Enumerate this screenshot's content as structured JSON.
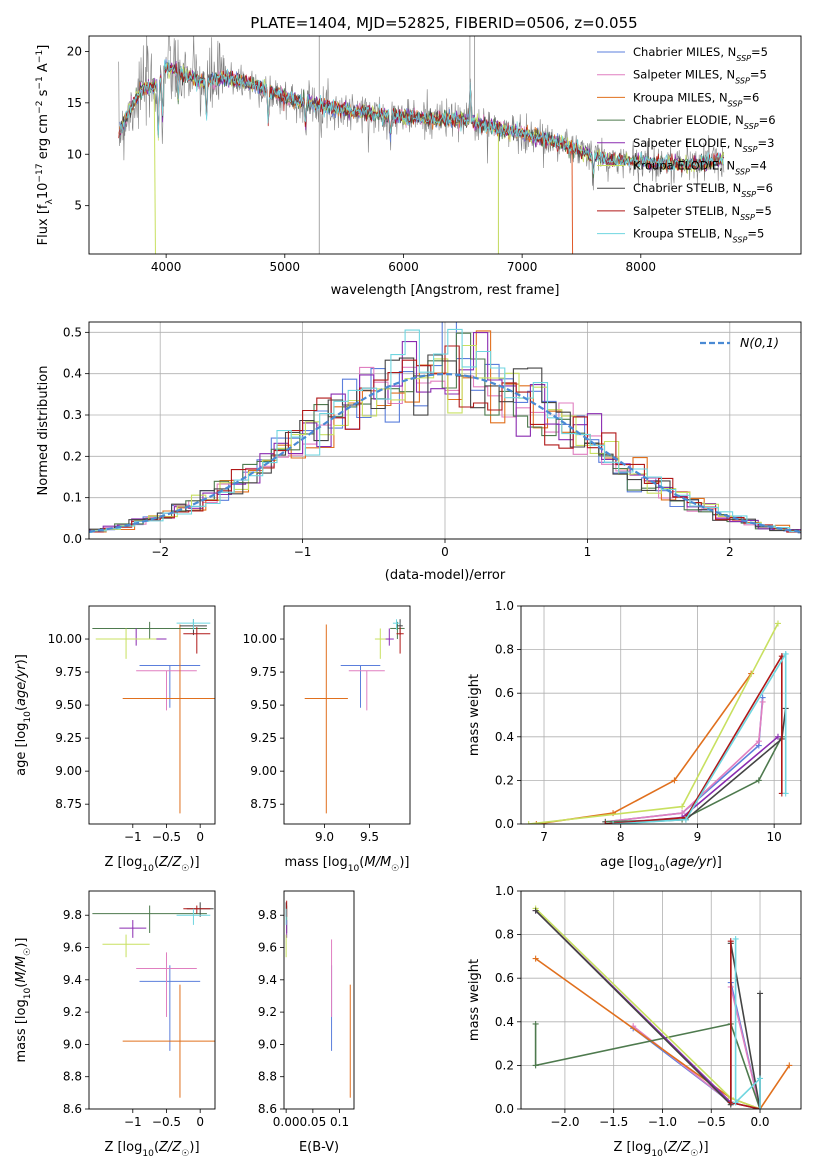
{
  "figure": {
    "title": "PLATE=1404, MJD=52825, FIBERID=0506, z=0.055"
  },
  "colors": {
    "Chabrier MILES": "#5b7fdc",
    "Salpeter MILES": "#e07fc0",
    "Kroupa MILES": "#e0701e",
    "Chabrier ELODIE": "#4e7a4e",
    "Salpeter ELODIE": "#8a2bb0",
    "Kroupa ELODIE": "#c8e060",
    "Chabrier STELIB": "#444444",
    "Salpeter STELIB": "#b01818",
    "Kroupa STELIB": "#6fd6e0",
    "data": "#808080"
  },
  "chart_data": [
    {
      "id": "spectrum",
      "type": "line",
      "title": "PLATE=1404, MJD=52825, FIBERID=0506, z=0.055",
      "xlabel": "wavelength [Angstrom, rest frame]",
      "ylabel": "Flux [f_λ 10^-17 erg cm^-2 s^-1 A^-1]",
      "xlim": [
        3350,
        9350
      ],
      "ylim": [
        0.3,
        21.5
      ],
      "xticks": [
        4000,
        5000,
        6000,
        7000,
        8000
      ],
      "yticks": [
        5,
        10,
        15,
        20
      ],
      "legend": "top-right",
      "legend_entries": [
        {
          "model": "Chabrier MILES",
          "label": "Chabrier MILES, N",
          "sub": "SSP",
          "count": "=5"
        },
        {
          "model": "Salpeter MILES",
          "label": "Salpeter MILES, N",
          "sub": "SSP",
          "count": "=5"
        },
        {
          "model": "Kroupa MILES",
          "label": "Kroupa MILES, N",
          "sub": "SSP",
          "count": "=6"
        },
        {
          "model": "Chabrier ELODIE",
          "label": "Chabrier ELODIE, N",
          "sub": "SSP",
          "count": "=6"
        },
        {
          "model": "Salpeter ELODIE",
          "label": "Salpeter ELODIE, N",
          "sub": "SSP",
          "count": "=3"
        },
        {
          "model": "Kroupa ELODIE",
          "label": "Kroupa ELODIE, N",
          "sub": "SSP",
          "count": "=4"
        },
        {
          "model": "Chabrier STELIB",
          "label": "Chabrier STELIB, N",
          "sub": "SSP",
          "count": "=6"
        },
        {
          "model": "Salpeter STELIB",
          "label": "Salpeter STELIB, N",
          "sub": "SSP",
          "count": "=5"
        },
        {
          "model": "Kroupa STELIB",
          "label": "Kroupa STELIB, N",
          "sub": "SSP",
          "count": "=5"
        }
      ],
      "continuum": [
        [
          3600,
          12.0
        ],
        [
          3700,
          14.5
        ],
        [
          3800,
          16.5
        ],
        [
          3900,
          16.5
        ],
        [
          4000,
          18.5
        ],
        [
          4100,
          18.0
        ],
        [
          4300,
          17.0
        ],
        [
          4500,
          17.5
        ],
        [
          4800,
          16.5
        ],
        [
          5000,
          15.5
        ],
        [
          5200,
          15.0
        ],
        [
          5500,
          14.3
        ],
        [
          6000,
          13.6
        ],
        [
          6500,
          13.3
        ],
        [
          7000,
          12.0
        ],
        [
          7300,
          11.2
        ],
        [
          7500,
          10.2
        ],
        [
          7700,
          9.5
        ],
        [
          8000,
          9.3
        ],
        [
          8300,
          9.0
        ],
        [
          8500,
          9.2
        ],
        [
          8700,
          9.5
        ]
      ]
    },
    {
      "id": "residuals",
      "type": "area",
      "xlabel": "(data-model)/error",
      "ylabel": "Normed distribution",
      "xlim": [
        -2.5,
        2.5
      ],
      "ylim": [
        0,
        0.525
      ],
      "xticks": [
        -2,
        -1,
        0,
        1,
        2
      ],
      "yticks": [
        0.0,
        0.1,
        0.2,
        0.3,
        0.4,
        0.5
      ],
      "grid": true,
      "legend": "top-right",
      "legend_label": "N(0,1)",
      "gaussian": {
        "mean": 0,
        "sigma": 1
      }
    },
    {
      "id": "age-vs-Z",
      "type": "scatter",
      "xlabel": "Z [log10(Z/Z☉)]",
      "ylabel": "age  [log10(age/yr)]",
      "xlim": [
        -1.65,
        0.22
      ],
      "ylim": [
        8.6,
        10.25
      ],
      "xticks": [
        -1,
        -0.5,
        0
      ],
      "yticks": [
        8.75,
        9.0,
        9.25,
        9.5,
        9.75,
        10.0
      ],
      "points": [
        {
          "model": "Chabrier MILES",
          "x": -0.45,
          "xerr": 0.45,
          "y": 9.8,
          "yerr": [
            0.32,
            0
          ]
        },
        {
          "model": "Salpeter MILES",
          "x": -0.5,
          "xerr": 0.45,
          "y": 9.76,
          "yerr": [
            0.3,
            0
          ]
        },
        {
          "model": "Kroupa MILES",
          "x": -0.3,
          "xerr": 0.85,
          "y": 9.55,
          "yerr": [
            0.87,
            0.56
          ]
        },
        {
          "model": "Chabrier ELODIE",
          "x": -0.75,
          "xerr": 0.85,
          "y": 10.08,
          "yerr": [
            0.08,
            0.05
          ]
        },
        {
          "model": "Salpeter ELODIE",
          "x": -0.95,
          "xerr": 0.45,
          "y": 10.0,
          "yerr": [
            0.05,
            0.08
          ]
        },
        {
          "model": "Kroupa ELODIE",
          "x": -1.1,
          "xerr": 0.45,
          "y": 10.0,
          "yerr": [
            0.15,
            0.08
          ]
        },
        {
          "model": "Chabrier STELIB",
          "x": -0.1,
          "xerr": 0.2,
          "y": 10.1,
          "yerr": [
            0.07,
            0.05
          ]
        },
        {
          "model": "Salpeter STELIB",
          "x": -0.05,
          "xerr": 0.2,
          "y": 10.04,
          "yerr": [
            0.15,
            0.05
          ]
        },
        {
          "model": "Kroupa STELIB",
          "x": -0.1,
          "xerr": 0.25,
          "y": 10.12,
          "yerr": [
            0.05,
            0.03
          ]
        }
      ]
    },
    {
      "id": "age-vs-mass",
      "type": "scatter",
      "xlabel": "mass [log10(M/M☉)]",
      "ylabel": "",
      "xlim": [
        8.55,
        9.95
      ],
      "ylim": [
        8.6,
        10.25
      ],
      "xticks": [
        9.0,
        9.5
      ],
      "yticks": [
        8.75,
        9.0,
        9.25,
        9.5,
        9.75,
        10.0
      ],
      "points": [
        {
          "model": "Chabrier MILES",
          "x": 9.4,
          "xerr": 0.22,
          "y": 9.8,
          "yerr": [
            0.32,
            0
          ]
        },
        {
          "model": "Salpeter MILES",
          "x": 9.47,
          "xerr": 0.2,
          "y": 9.76,
          "yerr": [
            0.3,
            0
          ]
        },
        {
          "model": "Kroupa MILES",
          "x": 9.02,
          "xerr": 0.24,
          "y": 9.55,
          "yerr": [
            0.87,
            0.56
          ]
        },
        {
          "model": "Chabrier ELODIE",
          "x": 9.81,
          "xerr": 0.08,
          "y": 10.08,
          "yerr": [
            0.08,
            0.05
          ]
        },
        {
          "model": "Salpeter ELODIE",
          "x": 9.72,
          "xerr": 0.05,
          "y": 10.0,
          "yerr": [
            0.05,
            0.08
          ]
        },
        {
          "model": "Kroupa ELODIE",
          "x": 9.62,
          "xerr": 0.06,
          "y": 10.0,
          "yerr": [
            0.15,
            0.08
          ]
        },
        {
          "model": "Chabrier STELIB",
          "x": 9.84,
          "xerr": 0.03,
          "y": 10.1,
          "yerr": [
            0.07,
            0.05
          ]
        },
        {
          "model": "Salpeter STELIB",
          "x": 9.84,
          "xerr": 0.04,
          "y": 10.04,
          "yerr": [
            0.15,
            0.05
          ]
        },
        {
          "model": "Kroupa STELIB",
          "x": 9.8,
          "xerr": 0.04,
          "y": 10.12,
          "yerr": [
            0.05,
            0.03
          ]
        }
      ]
    },
    {
      "id": "weight-vs-age",
      "type": "line",
      "xlabel": "age  [log10(age/yr)]",
      "ylabel": "mass weight",
      "xlim": [
        6.7,
        10.35
      ],
      "ylim": [
        0,
        1.0
      ],
      "xticks": [
        7,
        8,
        9,
        10
      ],
      "yticks": [
        0.0,
        0.2,
        0.4,
        0.6,
        0.8,
        1.0
      ],
      "grid": true,
      "series": [
        {
          "model": "Chabrier MILES",
          "x": [
            7.8,
            8.8,
            9.8,
            9.85
          ],
          "y": [
            0.01,
            0.05,
            0.36,
            0.58
          ]
        },
        {
          "model": "Salpeter MILES",
          "x": [
            7.8,
            8.8,
            9.8,
            9.85
          ],
          "y": [
            0.01,
            0.05,
            0.38,
            0.56
          ]
        },
        {
          "model": "Kroupa MILES",
          "x": [
            6.9,
            7.9,
            8.7,
            9.7
          ],
          "y": [
            0.0,
            0.05,
            0.2,
            0.69
          ]
        },
        {
          "model": "Chabrier ELODIE",
          "x": [
            7.8,
            8.8,
            9.8,
            10.1
          ],
          "y": [
            0.01,
            0.02,
            0.2,
            0.4
          ]
        },
        {
          "model": "Salpeter ELODIE",
          "x": [
            7.8,
            8.8,
            10.05
          ],
          "y": [
            0.0,
            0.03,
            0.4
          ]
        },
        {
          "model": "Kroupa ELODIE",
          "x": [
            6.8,
            8.8,
            10.05
          ],
          "y": [
            0.0,
            0.08,
            0.92
          ]
        },
        {
          "model": "Chabrier STELIB",
          "x": [
            7.8,
            8.85,
            10.1,
            10.15
          ],
          "y": [
            0.0,
            0.02,
            0.39,
            0.53
          ]
        },
        {
          "model": "Salpeter STELIB",
          "x": [
            7.8,
            8.85,
            10.1,
            10.1
          ],
          "y": [
            0.0,
            0.03,
            0.77,
            0.14
          ]
        },
        {
          "model": "Kroupa STELIB",
          "x": [
            7.9,
            8.85,
            10.15,
            10.15
          ],
          "y": [
            0.0,
            0.02,
            0.78,
            0.14
          ]
        }
      ]
    },
    {
      "id": "mass-vs-Z",
      "type": "scatter",
      "xlabel": "Z [log10(Z/Z☉)]",
      "ylabel": "mass [log10(M/M☉)]",
      "xlim": [
        -1.65,
        0.22
      ],
      "ylim": [
        8.6,
        9.95
      ],
      "xticks": [
        -1,
        -0.5,
        0
      ],
      "yticks": [
        8.6,
        8.8,
        9.0,
        9.2,
        9.4,
        9.6,
        9.8
      ],
      "points": [
        {
          "model": "Chabrier MILES",
          "x": -0.45,
          "xerr": 0.45,
          "y": 9.39,
          "yerr": [
            0.43,
            0.1
          ]
        },
        {
          "model": "Salpeter MILES",
          "x": -0.5,
          "xerr": 0.45,
          "y": 9.47,
          "yerr": [
            0.3,
            0.1
          ]
        },
        {
          "model": "Kroupa MILES",
          "x": -0.3,
          "xerr": 0.85,
          "y": 9.02,
          "yerr": [
            0.35,
            0.35
          ]
        },
        {
          "model": "Chabrier ELODIE",
          "x": -0.75,
          "xerr": 0.85,
          "y": 9.81,
          "yerr": [
            0.12,
            0.05
          ]
        },
        {
          "model": "Salpeter ELODIE",
          "x": -1.0,
          "xerr": 0.2,
          "y": 9.72,
          "yerr": [
            0.06,
            0.05
          ]
        },
        {
          "model": "Kroupa ELODIE",
          "x": -1.1,
          "xerr": 0.35,
          "y": 9.62,
          "yerr": [
            0.08,
            0.06
          ]
        },
        {
          "model": "Chabrier STELIB",
          "x": 0.0,
          "xerr": 0.2,
          "y": 9.84,
          "yerr": [
            0.05,
            0.04
          ]
        },
        {
          "model": "Salpeter STELIB",
          "x": -0.05,
          "xerr": 0.2,
          "y": 9.84,
          "yerr": [
            0.03,
            0.02
          ]
        },
        {
          "model": "Kroupa STELIB",
          "x": -0.1,
          "xerr": 0.25,
          "y": 9.8,
          "yerr": [
            0.06,
            0.04
          ]
        }
      ]
    },
    {
      "id": "mass-vs-EBV",
      "type": "scatter",
      "xlabel": "E(B-V)",
      "ylabel": "",
      "xlim": [
        -0.004,
        0.127
      ],
      "ylim": [
        8.6,
        9.95
      ],
      "xticks": [
        0.0,
        0.05,
        0.1
      ],
      "yticks": [
        8.6,
        8.8,
        9.0,
        9.2,
        9.4,
        9.6,
        9.8
      ],
      "points": [
        {
          "model": "Chabrier MILES",
          "x": 0.085,
          "xerr": 0,
          "y": 9.39,
          "yerr": [
            0.43,
            0.1
          ]
        },
        {
          "model": "Salpeter MILES",
          "x": 0.085,
          "xerr": 0,
          "y": 9.47,
          "yerr": [
            0.3,
            0.18
          ]
        },
        {
          "model": "Kroupa MILES",
          "x": 0.12,
          "xerr": 0,
          "y": 9.02,
          "yerr": [
            0.35,
            0.35
          ]
        },
        {
          "model": "Chabrier ELODIE",
          "x": 0.001,
          "xerr": 0,
          "y": 9.81,
          "yerr": [
            0.12,
            0.05
          ]
        },
        {
          "model": "Salpeter ELODIE",
          "x": 0.001,
          "xerr": 0,
          "y": 9.72,
          "yerr": [
            0.06,
            0.05
          ]
        },
        {
          "model": "Kroupa ELODIE",
          "x": 0.0,
          "xerr": 0,
          "y": 9.62,
          "yerr": [
            0.08,
            0.06
          ]
        },
        {
          "model": "Chabrier STELIB",
          "x": 0.0,
          "xerr": 0,
          "y": 9.84,
          "yerr": [
            0.05,
            0.04
          ]
        },
        {
          "model": "Salpeter STELIB",
          "x": 0.001,
          "xerr": 0,
          "y": 9.84,
          "yerr": [
            0.05,
            0.05
          ]
        },
        {
          "model": "Kroupa STELIB",
          "x": 0.0,
          "xerr": 0,
          "y": 9.8,
          "yerr": [
            0.06,
            0.04
          ]
        }
      ]
    },
    {
      "id": "weight-vs-Z",
      "type": "line",
      "xlabel": "Z [log10(Z/Z☉)]",
      "ylabel": "mass weight",
      "xlim": [
        -2.45,
        0.42
      ],
      "ylim": [
        0,
        1.0
      ],
      "xticks": [
        -2.0,
        -1.5,
        -1.0,
        -0.5,
        0.0
      ],
      "yticks": [
        0.0,
        0.2,
        0.4,
        0.6,
        0.8,
        1.0
      ],
      "grid": true,
      "series": [
        {
          "model": "Chabrier MILES",
          "x": [
            -1.3,
            -0.3,
            -0.3,
            0.0
          ],
          "y": [
            0.37,
            0.03,
            0.58,
            0.0
          ]
        },
        {
          "model": "Salpeter MILES",
          "x": [
            -1.3,
            -0.3,
            -0.3,
            0.0
          ],
          "y": [
            0.38,
            0.03,
            0.56,
            0.0
          ]
        },
        {
          "model": "Kroupa MILES",
          "x": [
            -2.3,
            -0.3,
            0.0,
            0.3
          ],
          "y": [
            0.69,
            0.05,
            0.0,
            0.2
          ]
        },
        {
          "model": "Chabrier ELODIE",
          "x": [
            -2.3,
            -2.3,
            -0.3,
            0.0
          ],
          "y": [
            0.39,
            0.2,
            0.39,
            0.0
          ]
        },
        {
          "model": "Salpeter ELODIE",
          "x": [
            -2.3,
            -0.3,
            0.0
          ],
          "y": [
            0.91,
            0.03,
            0.0
          ]
        },
        {
          "model": "Kroupa ELODIE",
          "x": [
            -2.3,
            -0.3,
            0.0
          ],
          "y": [
            0.92,
            0.05,
            0.0
          ]
        },
        {
          "model": "Chabrier STELIB",
          "x": [
            -2.3,
            -0.3,
            -0.3,
            0.0,
            0.0
          ],
          "y": [
            0.91,
            0.02,
            0.76,
            0.0,
            0.53
          ]
        },
        {
          "model": "Salpeter STELIB",
          "x": [
            -0.3,
            -0.3,
            0.0
          ],
          "y": [
            0.77,
            0.03,
            0.0
          ]
        },
        {
          "model": "Kroupa STELIB",
          "x": [
            -0.25,
            -0.25,
            0.0,
            0.0
          ],
          "y": [
            0.78,
            0.03,
            0.14,
            0.0
          ]
        }
      ]
    }
  ]
}
